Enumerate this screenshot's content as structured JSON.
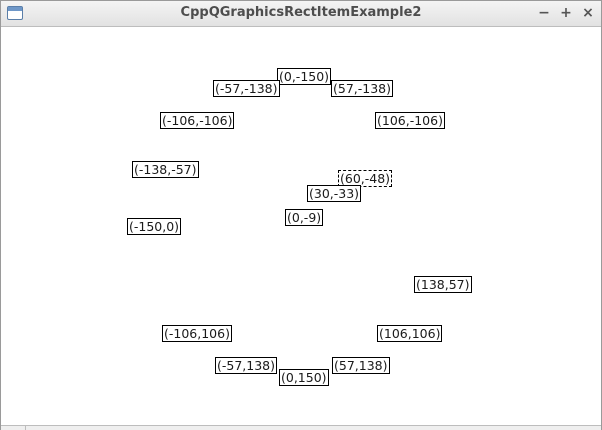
{
  "window": {
    "title": "CppQGraphicsRectItemExample2",
    "buttons": {
      "minimize": "−",
      "maximize": "+",
      "close": "×"
    }
  },
  "scene": {
    "items": [
      {
        "label": "(0,-150)",
        "selected": false
      },
      {
        "label": "(-57,-138)",
        "selected": false
      },
      {
        "label": "(57,-138)",
        "selected": false
      },
      {
        "label": "(-106,-106)",
        "selected": false
      },
      {
        "label": "(106,-106)",
        "selected": false
      },
      {
        "label": "(-138,-57)",
        "selected": false
      },
      {
        "label": "(60,-48)",
        "selected": true
      },
      {
        "label": "(30,-33)",
        "selected": false
      },
      {
        "label": "(0,-9)",
        "selected": false
      },
      {
        "label": "(-150,0)",
        "selected": false
      },
      {
        "label": "(138,57)",
        "selected": false
      },
      {
        "label": "(-106,106)",
        "selected": false
      },
      {
        "label": "(106,106)",
        "selected": false
      },
      {
        "label": "(-57,138)",
        "selected": false
      },
      {
        "label": "(57,138)",
        "selected": false
      },
      {
        "label": "(0,150)",
        "selected": false
      }
    ]
  }
}
